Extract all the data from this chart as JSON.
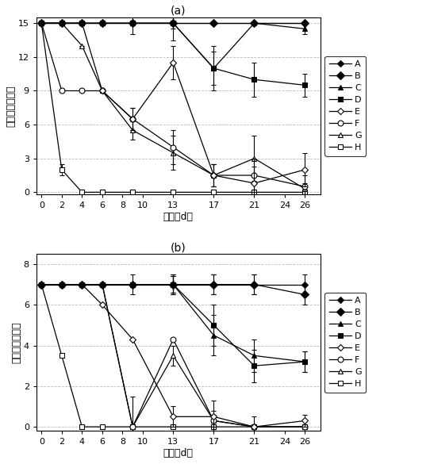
{
  "title_a": "(a)",
  "title_b": "(b)",
  "xlabel": "时间（d）",
  "ylabel_a": "蚀蜗条数（条）",
  "ylabel_b": "蛇蜗条数（条）",
  "xtick_vals": [
    0,
    2,
    4,
    6,
    8,
    10,
    13,
    17,
    21,
    24,
    26
  ],
  "xtick_labels": [
    "0",
    "2",
    "4",
    "6",
    "8",
    "10",
    "13",
    "17",
    "21",
    "24",
    "26"
  ],
  "series_order": [
    "A",
    "B",
    "C",
    "D",
    "E",
    "F",
    "G",
    "H"
  ],
  "series": {
    "A": {
      "marker": "D",
      "markersize": 4,
      "fillstyle": "full",
      "zorder": 10
    },
    "B": {
      "marker": "D",
      "markersize": 5,
      "fillstyle": "full",
      "zorder": 9
    },
    "C": {
      "marker": "^",
      "markersize": 5,
      "fillstyle": "full",
      "zorder": 8
    },
    "D": {
      "marker": "s",
      "markersize": 5,
      "fillstyle": "full",
      "zorder": 7
    },
    "E": {
      "marker": "D",
      "markersize": 4,
      "fillstyle": "none",
      "zorder": 6
    },
    "F": {
      "marker": "o",
      "markersize": 5,
      "fillstyle": "none",
      "zorder": 5
    },
    "G": {
      "marker": "^",
      "markersize": 5,
      "fillstyle": "none",
      "zorder": 4
    },
    "H": {
      "marker": "s",
      "markersize": 5,
      "fillstyle": "none",
      "zorder": 3
    }
  },
  "plot_a": {
    "xdata": [
      0,
      2,
      4,
      6,
      9,
      13,
      17,
      21,
      26
    ],
    "A": {
      "y": [
        15,
        15,
        15,
        15,
        15,
        15,
        15,
        15,
        15
      ],
      "yerr": [
        0,
        0,
        0,
        0,
        0,
        0,
        0,
        0,
        0
      ]
    },
    "B": {
      "y": [
        15,
        15,
        15,
        15,
        15,
        15,
        15,
        15,
        15
      ],
      "yerr": [
        0,
        0,
        0,
        0,
        0,
        0,
        0,
        0,
        0
      ]
    },
    "C": {
      "y": [
        15,
        15,
        15,
        15,
        15,
        15,
        11,
        15,
        14.5
      ],
      "yerr": [
        0,
        0,
        0,
        0,
        0,
        1.5,
        2.0,
        0,
        0.5
      ]
    },
    "D": {
      "y": [
        15,
        15,
        15,
        15,
        15,
        15,
        11,
        10,
        9.5
      ],
      "yerr": [
        0,
        0,
        0,
        0,
        1.0,
        0.5,
        1.5,
        1.5,
        1.0
      ]
    },
    "E": {
      "y": [
        15,
        15,
        15,
        9,
        6.5,
        11.5,
        1.5,
        0.8,
        2.0
      ],
      "yerr": [
        0,
        0,
        0,
        0,
        1.0,
        1.5,
        1.0,
        1.5,
        1.5
      ]
    },
    "F": {
      "y": [
        15,
        9,
        9,
        9,
        6.5,
        4.0,
        1.5,
        1.5,
        0.5
      ],
      "yerr": [
        0,
        0,
        0,
        0,
        1.0,
        1.5,
        1.0,
        1.5,
        1.0
      ]
    },
    "G": {
      "y": [
        15,
        15,
        13,
        9,
        5.5,
        3.5,
        1.5,
        3.0,
        0.3
      ],
      "yerr": [
        0,
        0,
        0,
        0,
        0.8,
        1.5,
        1.0,
        2.0,
        0.5
      ]
    },
    "H": {
      "y": [
        15,
        2,
        0,
        0,
        0,
        0,
        0,
        0,
        0
      ],
      "yerr": [
        0,
        0.5,
        0,
        0,
        0,
        0,
        0,
        0,
        0
      ]
    }
  },
  "plot_b": {
    "xdata": [
      0,
      2,
      4,
      6,
      9,
      13,
      17,
      21,
      26
    ],
    "A": {
      "y": [
        7,
        7,
        7,
        7,
        7,
        7,
        7,
        7,
        7
      ],
      "yerr": [
        0,
        0,
        0,
        0,
        0,
        0.4,
        0.5,
        0.5,
        0.5
      ]
    },
    "B": {
      "y": [
        7,
        7,
        7,
        7,
        7,
        7,
        7,
        7,
        6.5
      ],
      "yerr": [
        0,
        0,
        0,
        0,
        0,
        0.4,
        0.5,
        0.5,
        0.5
      ]
    },
    "C": {
      "y": [
        7,
        7,
        7,
        7,
        7,
        7,
        4.5,
        3.5,
        3.2
      ],
      "yerr": [
        0,
        0,
        0,
        0,
        0,
        0.5,
        1.0,
        0.8,
        0.5
      ]
    },
    "D": {
      "y": [
        7,
        7,
        7,
        7,
        7,
        7,
        5.0,
        3.0,
        3.2
      ],
      "yerr": [
        0,
        0,
        0,
        0,
        0.5,
        0.5,
        1.0,
        0.8,
        0.5
      ]
    },
    "E": {
      "y": [
        7,
        7,
        7,
        6,
        4.3,
        0.5,
        0.5,
        0,
        0.3
      ],
      "yerr": [
        0,
        0,
        0,
        0,
        0,
        0.5,
        0.8,
        0.5,
        0.3
      ]
    },
    "F": {
      "y": [
        7,
        7,
        7,
        7,
        0,
        4.3,
        0.3,
        0,
        0
      ],
      "yerr": [
        0,
        0,
        0,
        0,
        1.5,
        0,
        0.5,
        0,
        0
      ]
    },
    "G": {
      "y": [
        7,
        7,
        7,
        7,
        0,
        3.5,
        0.3,
        0,
        0
      ],
      "yerr": [
        0,
        0,
        0,
        0,
        0,
        0.5,
        0.3,
        0,
        0
      ]
    },
    "H": {
      "y": [
        7,
        3.5,
        0,
        0,
        0,
        0,
        0,
        0,
        0
      ],
      "yerr": [
        0,
        0,
        0,
        0,
        0,
        0,
        0,
        0,
        0
      ]
    }
  },
  "ylim_a": [
    0,
    15
  ],
  "ylim_b": [
    0,
    8
  ],
  "yticks_a": [
    0,
    3,
    6,
    9,
    12,
    15
  ],
  "yticks_b": [
    0,
    2,
    4,
    6,
    8
  ],
  "bgcolor": "#ffffff",
  "grid_color": "#bbbbbb",
  "linewidth": 0.9,
  "capsize": 2,
  "elinewidth": 0.8,
  "axis_fontsize": 8,
  "label_fontsize": 9,
  "title_fontsize": 10,
  "legend_fontsize": 8
}
